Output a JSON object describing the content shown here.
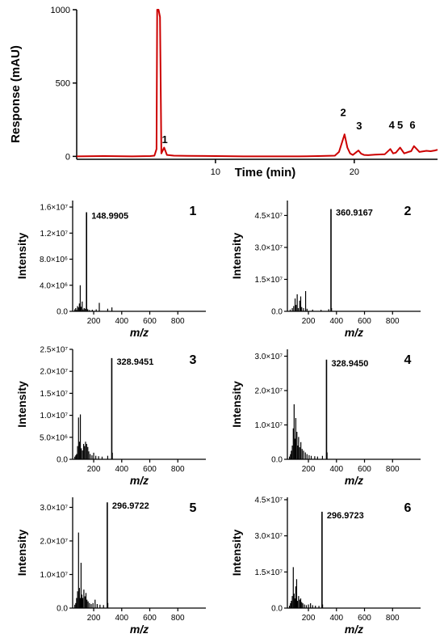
{
  "chart_data": [
    {
      "type": "line",
      "xlabel": "Time (min)",
      "ylabel": "Response (mAU)",
      "xlim": [
        0,
        26
      ],
      "ylim": [
        -20,
        1000
      ],
      "x_ticks": [
        10,
        20
      ],
      "y_ticks": [
        0,
        500,
        1000
      ],
      "color": "#cc0000",
      "series": [
        {
          "x": [
            0,
            2,
            4,
            5.3,
            5.6,
            5.75,
            5.8,
            5.9,
            6.0,
            6.1,
            6.2,
            6.3,
            6.5,
            7,
            8,
            10,
            12,
            14,
            16,
            17.4,
            18.6,
            18.9,
            19.1,
            19.3,
            19.5,
            19.7,
            19.9,
            20.1,
            20.3,
            20.5,
            20.7,
            21,
            21.5,
            22.2,
            22.6,
            22.8,
            23.0,
            23.3,
            23.6,
            23.9,
            24.1,
            24.3,
            24.7,
            25.2,
            25.5,
            25.8,
            26
          ],
          "y": [
            0,
            2,
            0,
            2,
            5,
            50,
            1000,
            1000,
            950,
            20,
            40,
            60,
            10,
            5,
            3,
            2,
            0,
            0,
            0,
            2,
            5,
            30,
            90,
            150,
            60,
            20,
            10,
            25,
            40,
            18,
            10,
            8,
            12,
            15,
            50,
            20,
            25,
            60,
            20,
            30,
            35,
            70,
            30,
            38,
            35,
            40,
            45
          ]
        }
      ],
      "annotations": [
        {
          "label": "1",
          "x": 6.35,
          "y": 90
        },
        {
          "label": "2",
          "x": 19.2,
          "y": 275
        },
        {
          "label": "3",
          "x": 20.35,
          "y": 185
        },
        {
          "label": "4",
          "x": 22.7,
          "y": 190
        },
        {
          "label": "5",
          "x": 23.3,
          "y": 190
        },
        {
          "label": "6",
          "x": 24.2,
          "y": 190
        }
      ]
    },
    {
      "type": "bar",
      "panel": "1",
      "xlabel": "m/z",
      "ylabel": "Intensity",
      "xlim": [
        50,
        1000
      ],
      "ylim": [
        0,
        17000000
      ],
      "x_ticks": [
        200,
        400,
        600,
        800
      ],
      "y_ticks": [
        0,
        4000000,
        8000000,
        12000000,
        16000000
      ],
      "y_tick_labels": [
        "0.0",
        "4.0×10⁶",
        "8.0×10⁶",
        "1.2×10⁷",
        "1.6×10⁷"
      ],
      "base_peak_label": "148.9905",
      "base_peak": 148.9905,
      "peaks": [
        [
          65,
          300000
        ],
        [
          72,
          500000
        ],
        [
          78,
          200000
        ],
        [
          85,
          800000
        ],
        [
          92,
          600000
        ],
        [
          98,
          1200000
        ],
        [
          104,
          4000000
        ],
        [
          110,
          700000
        ],
        [
          118,
          1500000
        ],
        [
          124,
          300000
        ],
        [
          132,
          500000
        ],
        [
          140,
          400000
        ],
        [
          148.99,
          15200000
        ],
        [
          152,
          400000
        ],
        [
          158,
          300000
        ],
        [
          170,
          200000
        ],
        [
          190,
          250000
        ],
        [
          218,
          300000
        ],
        [
          240,
          1300000
        ],
        [
          300,
          400000
        ],
        [
          330,
          600000
        ]
      ]
    },
    {
      "type": "bar",
      "panel": "2",
      "xlabel": "m/z",
      "ylabel": "Intensity",
      "xlim": [
        50,
        1000
      ],
      "ylim": [
        0,
        52000000
      ],
      "x_ticks": [
        200,
        400,
        600,
        800
      ],
      "y_ticks": [
        0,
        15000000,
        30000000,
        45000000
      ],
      "y_tick_labels": [
        "0.0",
        "1.5×10⁷",
        "3.0×10⁷",
        "4.5×10⁷"
      ],
      "base_peak_label": "360.9167",
      "base_peak": 360.9167,
      "peaks": [
        [
          70,
          800000
        ],
        [
          85,
          1500000
        ],
        [
          95,
          2500000
        ],
        [
          105,
          6000000
        ],
        [
          112,
          3000000
        ],
        [
          120,
          8000000
        ],
        [
          128,
          1500000
        ],
        [
          138,
          5000000
        ],
        [
          145,
          7000000
        ],
        [
          152,
          2000000
        ],
        [
          165,
          1500000
        ],
        [
          180,
          9500000
        ],
        [
          190,
          1200000
        ],
        [
          230,
          800000
        ],
        [
          290,
          700000
        ],
        [
          345,
          1000000
        ],
        [
          360.92,
          48000000
        ],
        [
          365,
          1500000
        ]
      ]
    },
    {
      "type": "bar",
      "panel": "3",
      "xlabel": "m/z",
      "ylabel": "Intensity",
      "xlim": [
        50,
        1000
      ],
      "ylim": [
        0,
        25000000
      ],
      "x_ticks": [
        200,
        400,
        600,
        800
      ],
      "y_ticks": [
        0,
        5000000,
        10000000,
        15000000,
        20000000,
        25000000
      ],
      "y_tick_labels": [
        "0.0",
        "5.0×10⁶",
        "1.0×10⁷",
        "1.5×10⁷",
        "2.0×10⁷",
        "2.5×10⁷"
      ],
      "base_peak_label": "328.9451",
      "base_peak": 328.9451,
      "peaks": [
        [
          65,
          600000
        ],
        [
          72,
          900000
        ],
        [
          78,
          1200000
        ],
        [
          85,
          3000000
        ],
        [
          92,
          9500000
        ],
        [
          98,
          4000000
        ],
        [
          105,
          10200000
        ],
        [
          112,
          2500000
        ],
        [
          120,
          2000000
        ],
        [
          128,
          3500000
        ],
        [
          135,
          3000000
        ],
        [
          142,
          4000000
        ],
        [
          150,
          3500000
        ],
        [
          158,
          2800000
        ],
        [
          165,
          1800000
        ],
        [
          175,
          1200000
        ],
        [
          188,
          900000
        ],
        [
          200,
          1500000
        ],
        [
          215,
          800000
        ],
        [
          235,
          700000
        ],
        [
          260,
          600000
        ],
        [
          300,
          800000
        ],
        [
          328.95,
          23000000
        ],
        [
          333,
          1500000
        ]
      ]
    },
    {
      "type": "bar",
      "panel": "4",
      "xlabel": "m/z",
      "ylabel": "Intensity",
      "xlim": [
        50,
        1000
      ],
      "ylim": [
        0,
        32000000
      ],
      "x_ticks": [
        200,
        400,
        600,
        800
      ],
      "y_ticks": [
        0,
        10000000,
        20000000,
        30000000
      ],
      "y_tick_labels": [
        "0.0",
        "1.0×10⁷",
        "2.0×10⁷",
        "3.0×10⁷"
      ],
      "base_peak_label": "328.9450",
      "base_peak": 328.945,
      "peaks": [
        [
          65,
          800000
        ],
        [
          72,
          1500000
        ],
        [
          78,
          2500000
        ],
        [
          85,
          4000000
        ],
        [
          92,
          9000000
        ],
        [
          98,
          16000000
        ],
        [
          104,
          6000000
        ],
        [
          110,
          12000000
        ],
        [
          118,
          8000000
        ],
        [
          124,
          4000000
        ],
        [
          130,
          6500000
        ],
        [
          138,
          3500000
        ],
        [
          146,
          5000000
        ],
        [
          155,
          3000000
        ],
        [
          165,
          2500000
        ],
        [
          178,
          2000000
        ],
        [
          190,
          1500000
        ],
        [
          205,
          1200000
        ],
        [
          220,
          1000000
        ],
        [
          245,
          900000
        ],
        [
          265,
          800000
        ],
        [
          300,
          1000000
        ],
        [
          328.95,
          29000000
        ],
        [
          333,
          2000000
        ]
      ]
    },
    {
      "type": "bar",
      "panel": "5",
      "xlabel": "m/z",
      "ylabel": "Intensity",
      "xlim": [
        50,
        1000
      ],
      "ylim": [
        0,
        33000000
      ],
      "x_ticks": [
        200,
        400,
        600,
        800
      ],
      "y_ticks": [
        0,
        10000000,
        20000000,
        30000000
      ],
      "y_tick_labels": [
        "0.0",
        "1.0×10⁷",
        "2.0×10⁷",
        "3.0×10⁷"
      ],
      "base_peak_label": "296.9722",
      "base_peak": 296.9722,
      "peaks": [
        [
          65,
          1000000
        ],
        [
          72,
          1500000
        ],
        [
          78,
          3000000
        ],
        [
          85,
          5000000
        ],
        [
          92,
          22500000
        ],
        [
          98,
          6000000
        ],
        [
          104,
          3000000
        ],
        [
          110,
          13500000
        ],
        [
          116,
          4000000
        ],
        [
          122,
          3000000
        ],
        [
          130,
          5500000
        ],
        [
          138,
          3500000
        ],
        [
          145,
          4500000
        ],
        [
          152,
          2500000
        ],
        [
          160,
          2000000
        ],
        [
          170,
          1500000
        ],
        [
          182,
          1200000
        ],
        [
          195,
          1500000
        ],
        [
          210,
          2500000
        ],
        [
          225,
          1200000
        ],
        [
          245,
          1000000
        ],
        [
          270,
          900000
        ],
        [
          296.97,
          31500000
        ],
        [
          301,
          1500000
        ]
      ]
    },
    {
      "type": "bar",
      "panel": "6",
      "xlabel": "m/z",
      "ylabel": "Intensity",
      "xlim": [
        50,
        1000
      ],
      "ylim": [
        0,
        46000000
      ],
      "x_ticks": [
        200,
        400,
        600,
        800
      ],
      "y_ticks": [
        0,
        15000000,
        30000000,
        45000000
      ],
      "y_tick_labels": [
        "0.0",
        "1.5×10⁷",
        "3.0×10⁷",
        "4.5×10⁷"
      ],
      "base_peak_label": "296.9723",
      "base_peak": 296.9723,
      "peaks": [
        [
          65,
          1000000
        ],
        [
          72,
          2000000
        ],
        [
          78,
          3000000
        ],
        [
          85,
          5000000
        ],
        [
          92,
          17000000
        ],
        [
          98,
          6000000
        ],
        [
          104,
          4000000
        ],
        [
          110,
          9000000
        ],
        [
          116,
          12000000
        ],
        [
          122,
          3000000
        ],
        [
          130,
          5000000
        ],
        [
          138,
          3500000
        ],
        [
          145,
          4000000
        ],
        [
          152,
          2500000
        ],
        [
          160,
          2000000
        ],
        [
          172,
          1500000
        ],
        [
          185,
          1200000
        ],
        [
          200,
          1500000
        ],
        [
          215,
          2000000
        ],
        [
          230,
          1200000
        ],
        [
          250,
          1000000
        ],
        [
          275,
          900000
        ],
        [
          296.97,
          40000000
        ],
        [
          301,
          1500000
        ]
      ]
    }
  ]
}
